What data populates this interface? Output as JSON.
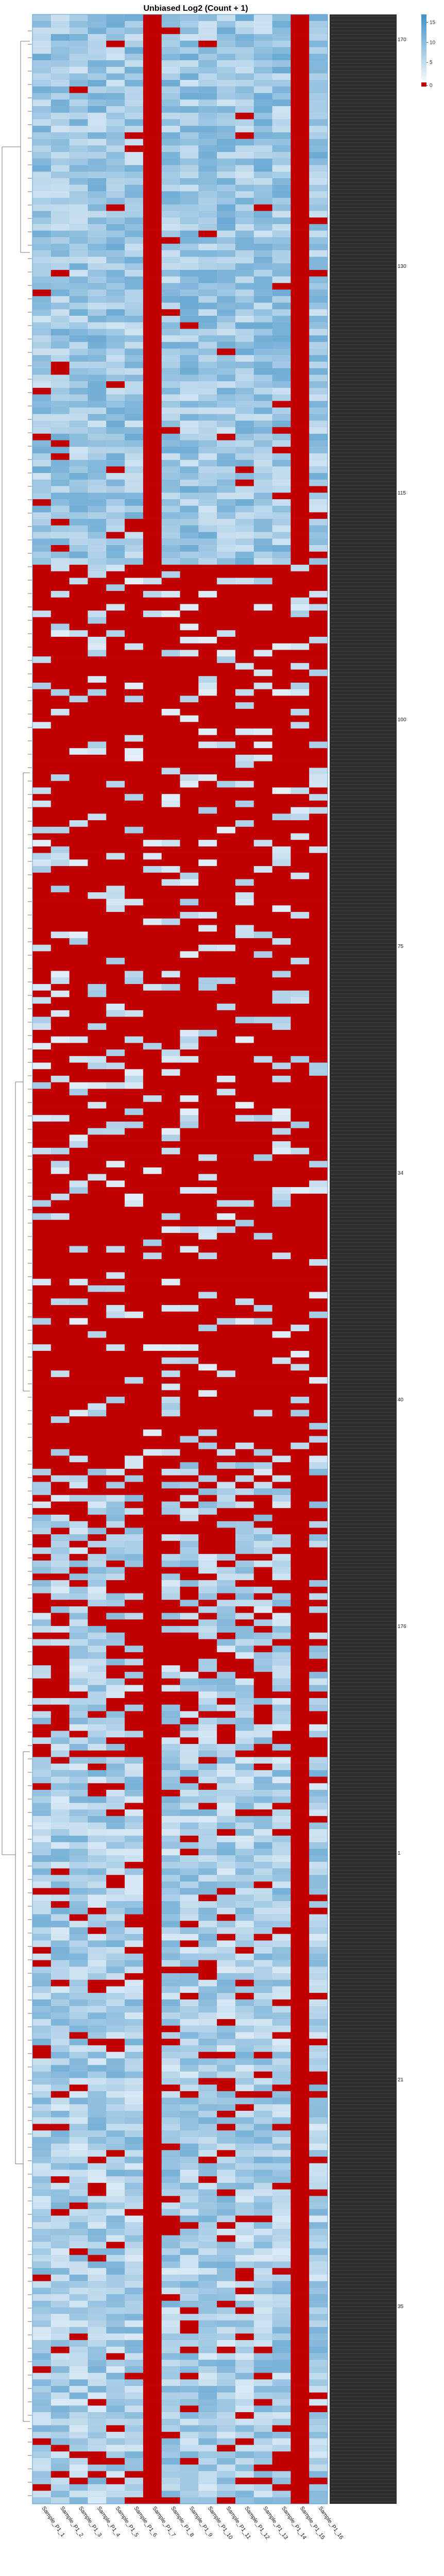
{
  "chart_data": {
    "type": "heatmap",
    "title": "Unbiased Log2 (Count + 1)",
    "columns": [
      "Sample_P1_1",
      "Sample_P1_2",
      "Sample_P1_3",
      "Sample_P1_4",
      "Sample_P1_5",
      "Sample_P1_6",
      "Sample_P1_7",
      "Sample_P1_8",
      "Sample_P1_9",
      "Sample_P1_10",
      "Sample_P1_11",
      "Sample_P1_12",
      "Sample_P1_13",
      "Sample_P1_14",
      "Sample_P1_15",
      "Sample_P1_16"
    ],
    "colorbar": {
      "ticks": [
        15,
        10,
        5,
        0
      ],
      "range": [
        0,
        17
      ]
    },
    "colors": {
      "zero": "#c00000",
      "low": "#f7fbff",
      "high": "#2171b5"
    },
    "row_labels_visible": [
      "170",
      "130",
      "115",
      "100",
      "75",
      "34",
      "40",
      "176",
      "1",
      "21",
      "35"
    ],
    "dendrogram": true
  }
}
